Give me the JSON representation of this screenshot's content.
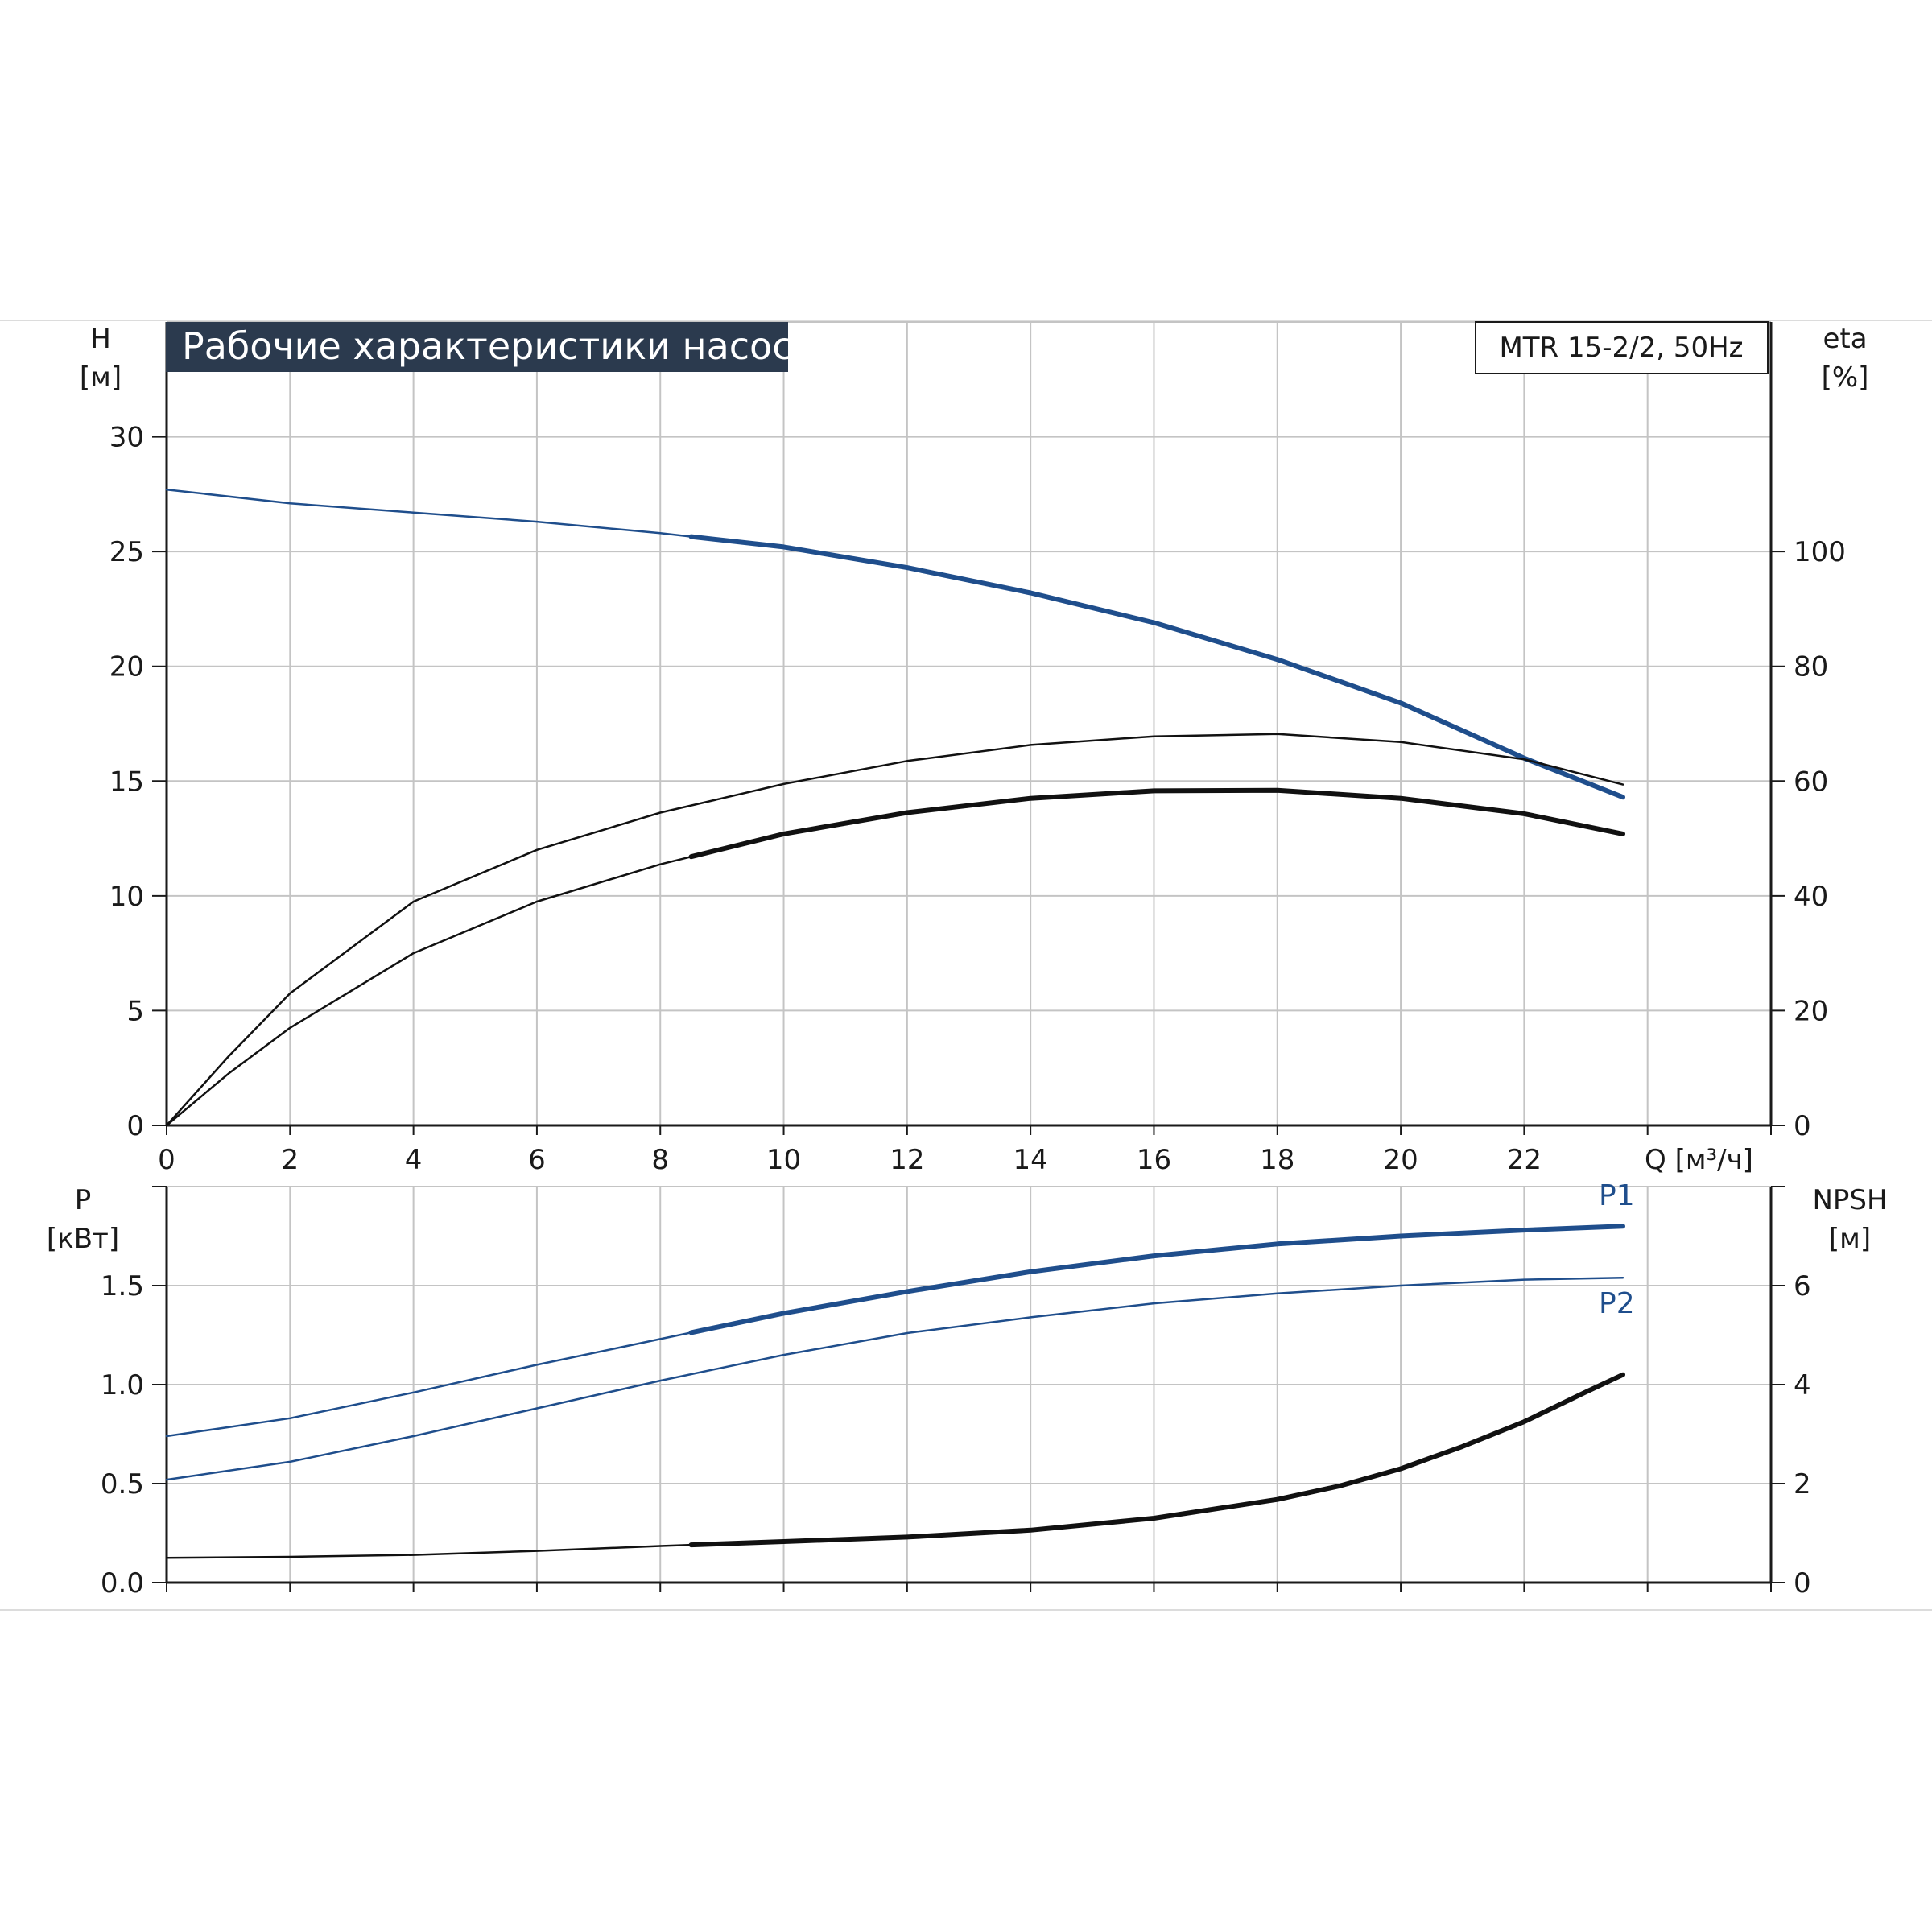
{
  "chart_data": {
    "title": "Рабочие характеристики насоса",
    "model": "MTR 15-2/2, 50Hz",
    "x_axis": {
      "label": "Q [м³/ч]",
      "range": [
        0,
        26
      ],
      "ticks": [
        0,
        2,
        4,
        6,
        8,
        10,
        12,
        14,
        16,
        18,
        20,
        22
      ]
    },
    "charts": [
      {
        "type": "line",
        "left_axis": {
          "name": "H",
          "unit": "[м]",
          "range": [
            0,
            35
          ],
          "ticks": [
            0,
            5,
            10,
            15,
            20,
            25,
            30
          ],
          "tick_labels": [
            "0",
            "5",
            "10",
            "15",
            "20",
            "25",
            "30"
          ]
        },
        "right_axis": {
          "name": "eta",
          "unit": "[%]",
          "range": [
            0,
            140
          ],
          "ticks": [
            0,
            20,
            40,
            60,
            80,
            100
          ],
          "tick_labels": [
            "0",
            "20",
            "40",
            "60",
            "80",
            "100"
          ]
        },
        "grid": true,
        "series": [
          {
            "axis": "left",
            "color": "#1f4e8c",
            "x": [
              0,
              2,
              4,
              6,
              8,
              10,
              12,
              14,
              16,
              18,
              20,
              22,
              23.6
            ],
            "y": [
              27.7,
              27.1,
              26.7,
              26.3,
              25.8,
              25.2,
              24.3,
              23.2,
              21.9,
              20.3,
              18.4,
              16.0,
              14.3
            ],
            "bold_from": 8.5
          },
          {
            "axis": "right",
            "color": "#111111",
            "x": [
              0,
              1,
              2,
              4,
              6,
              8,
              10,
              12,
              14,
              16,
              18,
              20,
              22,
              23.6
            ],
            "y": [
              0,
              12,
              23,
              39,
              48,
              54.5,
              59.5,
              63.5,
              66.3,
              67.8,
              68.2,
              66.8,
              63.8,
              59.4
            ],
            "bold_from": 99
          },
          {
            "axis": "right",
            "color": "#111111",
            "x": [
              0,
              1,
              2,
              4,
              6,
              8,
              10,
              12,
              14,
              16,
              18,
              20,
              22,
              23.6
            ],
            "y": [
              0,
              9,
              17,
              30,
              39,
              45.5,
              50.8,
              54.5,
              57,
              58.3,
              58.4,
              57,
              54.3,
              50.8
            ],
            "bold_from": 8.5
          }
        ]
      },
      {
        "type": "line",
        "left_axis": {
          "name": "P",
          "unit": "[кВт]",
          "range": [
            0,
            2
          ],
          "ticks": [
            0,
            0.5,
            1.0,
            1.5,
            2.0
          ],
          "tick_labels": [
            "0.0",
            "0.5",
            "1.0",
            "1.5",
            ""
          ]
        },
        "right_axis": {
          "name": "NPSH",
          "unit": "[м]",
          "range": [
            0,
            8
          ],
          "ticks": [
            0,
            2,
            4,
            6,
            8
          ],
          "tick_labels": [
            "0",
            "2",
            "4",
            "6",
            ""
          ]
        },
        "grid": true,
        "series": [
          {
            "name": "P1",
            "axis": "left",
            "color": "#1f4e8c",
            "x": [
              0,
              2,
              4,
              6,
              8,
              10,
              12,
              14,
              16,
              18,
              20,
              22,
              23.6
            ],
            "y": [
              0.74,
              0.83,
              0.96,
              1.1,
              1.23,
              1.36,
              1.47,
              1.57,
              1.65,
              1.71,
              1.75,
              1.78,
              1.8
            ],
            "bold_from": 8.5
          },
          {
            "name": "P2",
            "axis": "left",
            "color": "#1f4e8c",
            "x": [
              0,
              2,
              4,
              6,
              8,
              10,
              12,
              14,
              16,
              18,
              20,
              22,
              23.6
            ],
            "y": [
              0.52,
              0.61,
              0.74,
              0.88,
              1.02,
              1.15,
              1.26,
              1.34,
              1.41,
              1.46,
              1.5,
              1.53,
              1.54
            ],
            "bold_from": 99
          },
          {
            "axis": "right",
            "color": "#111111",
            "x": [
              0,
              2,
              4,
              6,
              8,
              10,
              12,
              14,
              16,
              18,
              19,
              20,
              21,
              22,
              23,
              23.6
            ],
            "y": [
              0.5,
              0.52,
              0.56,
              0.64,
              0.74,
              0.83,
              0.92,
              1.06,
              1.3,
              1.68,
              1.95,
              2.3,
              2.75,
              3.25,
              3.85,
              4.2
            ],
            "bold_from": 8.5
          }
        ]
      }
    ]
  }
}
